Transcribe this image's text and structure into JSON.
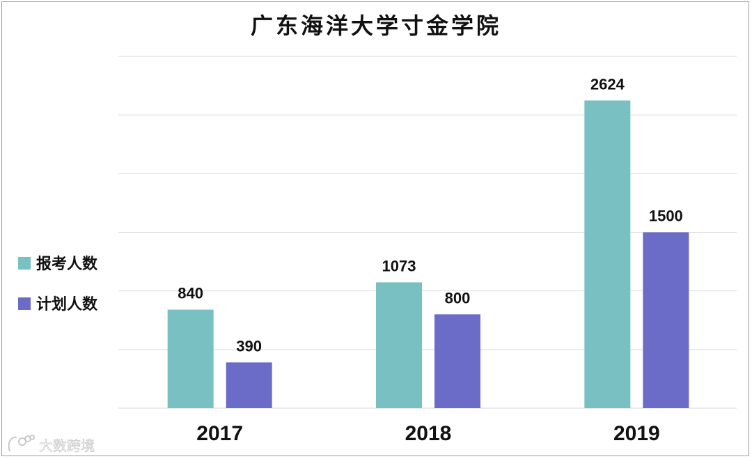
{
  "chart_data": {
    "type": "bar",
    "title": "广东海洋大学寸金学院",
    "categories": [
      "2017",
      "2018",
      "2019"
    ],
    "series": [
      {
        "name": "报考人数",
        "color": "#78c0c2",
        "values": [
          840,
          1073,
          2624
        ]
      },
      {
        "name": "计划人数",
        "color": "#6b6bc8",
        "values": [
          390,
          800,
          1500
        ]
      }
    ],
    "ylim": [
      0,
      3000
    ],
    "grid": true,
    "legend_position": "left"
  },
  "watermark": {
    "text": "大数跨境"
  }
}
